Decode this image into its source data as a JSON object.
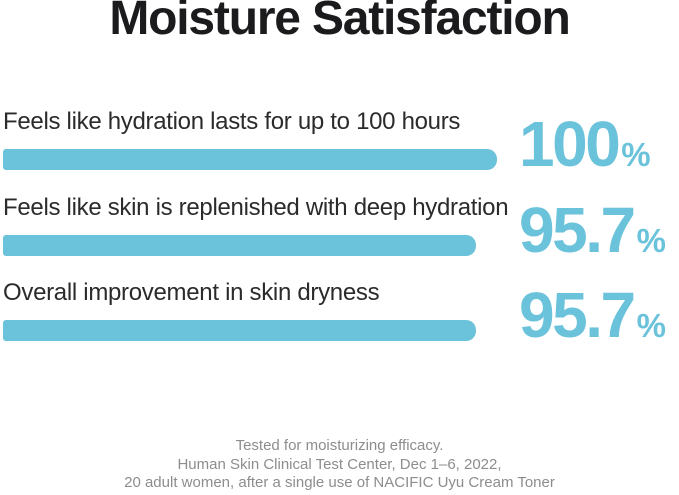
{
  "chart_data": {
    "type": "bar",
    "orientation": "horizontal",
    "title": "Moisture Satisfaction",
    "xlabel": "",
    "ylabel": "",
    "xlim": [
      0,
      100
    ],
    "grid": false,
    "legend": false,
    "bar_color": "#6AC2DB",
    "value_color": "#6AC2DB",
    "categories": [
      "Feels like hydration lasts for up to 100 hours",
      "Feels like skin is replenished with deep hydration",
      "Overall improvement in skin dryness"
    ],
    "values": [
      100,
      95.7,
      95.7
    ],
    "rows": [
      {
        "label": "Feels like hydration lasts for up to 100 hours",
        "value": 100,
        "display": "100",
        "unit": "%"
      },
      {
        "label": "Feels like skin is replenished with deep hydration",
        "value": 95.7,
        "display": "95.7",
        "unit": "%"
      },
      {
        "label": "Overall improvement in skin dryness",
        "value": 95.7,
        "display": "95.7",
        "unit": "%"
      }
    ]
  },
  "footer": {
    "lines": [
      "Tested for moisturizing efficacy.",
      "Human Skin Clinical Test Center, Dec 1–6, 2022,",
      "20 adult women, after a single use of NACIFIC Uyu Cream Toner"
    ]
  }
}
